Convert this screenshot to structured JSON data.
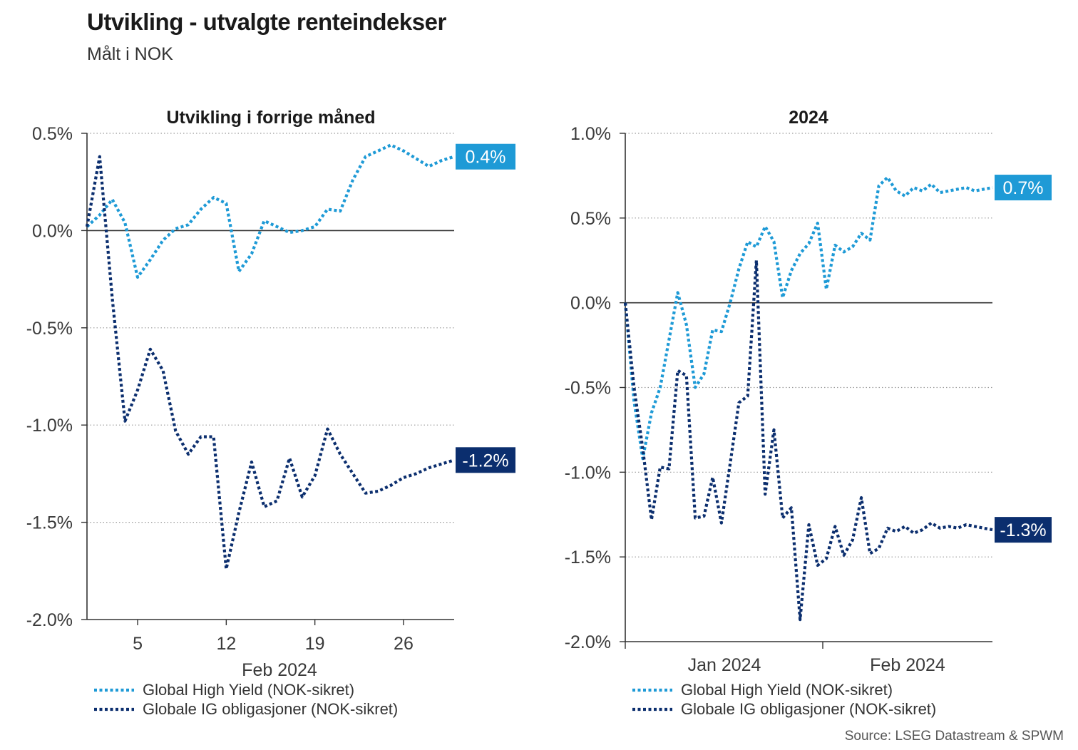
{
  "title": "Utvikling - utvalgte renteindekser",
  "subtitle": "Målt i NOK",
  "source": "Source: LSEG Datastream & SPWM",
  "colors": {
    "hy": "#1e9ad6",
    "ig": "#0b2e6e"
  },
  "chart_data": [
    {
      "type": "line",
      "title": "Utvikling i forrige måned",
      "xlabel": "Feb 2024",
      "ylim": [
        -2.0,
        0.5
      ],
      "yticks": [
        0.5,
        0.0,
        -0.5,
        -1.0,
        -1.5,
        -2.0
      ],
      "ytick_labels": [
        "0.5%",
        "0.0%",
        "-0.5%",
        "-1.0%",
        "-1.5%",
        "-2.0%"
      ],
      "xlim": [
        1,
        30
      ],
      "xticks": [
        5,
        12,
        19,
        26
      ],
      "xtick_labels": [
        "5",
        "12",
        "19",
        "26"
      ],
      "grid": true,
      "legend": "bottom",
      "series": [
        {
          "name": "Global High Yield (NOK-sikret)",
          "end_label": "0.4%",
          "x": [
            1,
            2,
            3,
            4,
            5,
            6,
            7,
            8,
            9,
            10,
            11,
            12,
            13,
            14,
            15,
            16,
            17,
            18,
            19,
            20,
            21,
            22,
            23,
            24,
            25,
            26,
            27,
            28,
            29,
            30
          ],
          "values": [
            0.02,
            0.08,
            0.16,
            0.04,
            -0.24,
            -0.15,
            -0.05,
            0.01,
            0.03,
            0.11,
            0.17,
            0.14,
            -0.21,
            -0.12,
            0.05,
            0.02,
            -0.01,
            0.0,
            0.02,
            0.11,
            0.1,
            0.26,
            0.38,
            0.41,
            0.44,
            0.41,
            0.37,
            0.33,
            0.36,
            0.38
          ]
        },
        {
          "name": "Globale IG obligasjoner (NOK-sikret)",
          "end_label": "-1.2%",
          "x": [
            1,
            2,
            3,
            4,
            5,
            6,
            7,
            8,
            9,
            10,
            11,
            12,
            13,
            14,
            15,
            16,
            17,
            18,
            19,
            20,
            21,
            22,
            23,
            24,
            25,
            26,
            27,
            28,
            29,
            30
          ],
          "values": [
            0.02,
            0.38,
            -0.35,
            -0.98,
            -0.82,
            -0.61,
            -0.72,
            -1.03,
            -1.15,
            -1.06,
            -1.06,
            -1.74,
            -1.45,
            -1.19,
            -1.42,
            -1.39,
            -1.17,
            -1.37,
            -1.26,
            -1.02,
            -1.15,
            -1.25,
            -1.35,
            -1.34,
            -1.31,
            -1.27,
            -1.25,
            -1.22,
            -1.2,
            -1.18
          ]
        }
      ]
    },
    {
      "type": "line",
      "title": "2024",
      "ylim": [
        -2.0,
        1.0
      ],
      "yticks": [
        1.0,
        0.5,
        0.0,
        -0.5,
        -1.0,
        -1.5,
        -2.0
      ],
      "ytick_labels": [
        "1.0%",
        "0.5%",
        "0.0%",
        "-0.5%",
        "-1.0%",
        "-1.5%",
        "-2.0%"
      ],
      "xlim": [
        0,
        42
      ],
      "xtick_labels": [
        "Jan 2024",
        "Feb 2024"
      ],
      "grid": true,
      "legend": "bottom",
      "series": [
        {
          "name": "Global High Yield (NOK-sikret)",
          "end_label": "0.7%",
          "x": [
            0,
            1,
            2,
            3,
            4,
            5,
            6,
            7,
            8,
            9,
            10,
            11,
            12,
            13,
            14,
            15,
            16,
            17,
            18,
            19,
            20,
            21,
            22,
            23,
            24,
            25,
            26,
            27,
            28,
            29,
            30,
            31,
            32,
            33,
            34,
            35,
            36,
            37,
            38,
            39,
            40,
            41,
            42
          ],
          "values": [
            0.0,
            -0.58,
            -0.92,
            -0.65,
            -0.5,
            -0.22,
            0.06,
            -0.13,
            -0.5,
            -0.42,
            -0.16,
            -0.17,
            0.0,
            0.2,
            0.36,
            0.33,
            0.45,
            0.36,
            0.03,
            0.19,
            0.29,
            0.35,
            0.47,
            0.08,
            0.34,
            0.3,
            0.33,
            0.41,
            0.37,
            0.69,
            0.74,
            0.66,
            0.63,
            0.68,
            0.66,
            0.7,
            0.65,
            0.66,
            0.67,
            0.68,
            0.66,
            0.67,
            0.68
          ]
        },
        {
          "name": "Globale IG obligasjoner (NOK-sikret)",
          "end_label": "-1.3%",
          "x": [
            0,
            1,
            2,
            3,
            4,
            5,
            6,
            7,
            8,
            9,
            10,
            11,
            12,
            13,
            14,
            15,
            16,
            17,
            18,
            19,
            20,
            21,
            22,
            23,
            24,
            25,
            26,
            27,
            28,
            29,
            30,
            31,
            32,
            33,
            34,
            35,
            36,
            37,
            38,
            39,
            40,
            41,
            42
          ],
          "values": [
            0.0,
            -0.5,
            -0.86,
            -1.28,
            -0.97,
            -0.98,
            -0.4,
            -0.43,
            -1.27,
            -1.26,
            -1.03,
            -1.3,
            -0.95,
            -0.59,
            -0.55,
            0.25,
            -1.13,
            -0.75,
            -1.27,
            -1.21,
            -1.87,
            -1.31,
            -1.55,
            -1.51,
            -1.32,
            -1.49,
            -1.4,
            -1.15,
            -1.48,
            -1.45,
            -1.33,
            -1.35,
            -1.32,
            -1.36,
            -1.34,
            -1.3,
            -1.33,
            -1.32,
            -1.33,
            -1.31,
            -1.32,
            -1.33,
            -1.34
          ]
        }
      ]
    }
  ]
}
